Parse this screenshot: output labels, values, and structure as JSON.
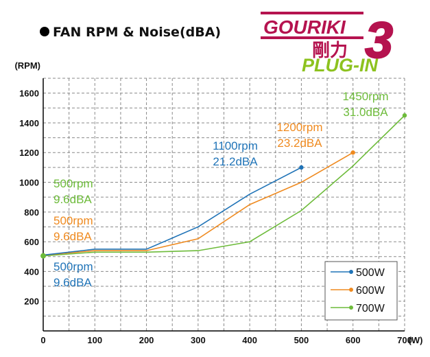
{
  "header": {
    "title": "FAN RPM &  Noise(dBA)",
    "bullet_color": "#000000"
  },
  "logo": {
    "word": "GOURIKI",
    "kanji": "剛力",
    "number": "3",
    "sub": "PLUG-IN",
    "main_color": "#b5134f",
    "sub_color": "#8dc21f"
  },
  "chart_data": {
    "type": "line",
    "xlabel": "(W)",
    "ylabel": "(RPM)",
    "xlim": [
      0,
      700
    ],
    "ylim": [
      0,
      1700
    ],
    "x_ticks": [
      0,
      100,
      200,
      300,
      400,
      500,
      600,
      700
    ],
    "y_ticks": [
      200,
      400,
      600,
      800,
      1000,
      1200,
      1400,
      1600
    ],
    "grid": true,
    "grid_style": "dashed",
    "legend_position": "bottom-right",
    "series": [
      {
        "name": "500W",
        "color": "#1f73b7",
        "x": [
          0,
          100,
          200,
          300,
          400,
          500
        ],
        "y": [
          510,
          550,
          550,
          700,
          920,
          1100
        ],
        "end_label": [
          "1100rpm",
          "21.2dBA"
        ],
        "start_label": [
          "500rpm",
          "9.6dBA"
        ]
      },
      {
        "name": "600W",
        "color": "#ef8a1f",
        "x": [
          0,
          100,
          200,
          300,
          400,
          500,
          600
        ],
        "y": [
          510,
          540,
          540,
          620,
          850,
          1000,
          1200
        ],
        "end_label": [
          "1200rpm",
          "23.2dBA"
        ],
        "start_label": [
          "500rpm",
          "9.6dBA"
        ]
      },
      {
        "name": "700W",
        "color": "#6dbb3a",
        "x": [
          0,
          100,
          200,
          300,
          400,
          500,
          600,
          700
        ],
        "y": [
          505,
          530,
          530,
          540,
          600,
          810,
          1110,
          1450
        ],
        "end_label": [
          "1450rpm",
          "31.0dBA"
        ],
        "start_label": [
          "500rpm",
          "9.6dBA"
        ]
      }
    ]
  }
}
